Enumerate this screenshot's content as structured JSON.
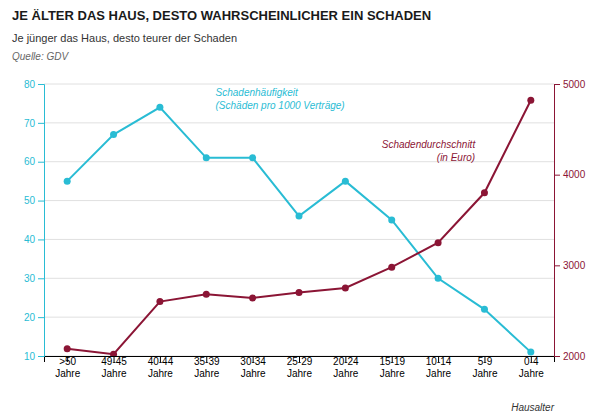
{
  "chart_data": {
    "type": "line",
    "title": "JE ÄLTER DAS HAUS, DESTO WAHRSCHEINLICHER EIN SCHADEN",
    "subtitle": "Je jünger das Haus, desto teurer der Schaden",
    "annotations": [
      "Quelle: GDV"
    ],
    "x_label": "Hausalter",
    "categories": [
      ">50\nJahre",
      "49-45\nJahre",
      "40-44\nJahre",
      "35-39\nJahre",
      "30-34\nJahre",
      "25-29\nJahre",
      "20-24\nJahre",
      "15-19\nJahre",
      "10-14\nJahre",
      "5-9\nJahre",
      "0-4\nJahre"
    ],
    "series": [
      {
        "name": "Schadenhäufigkeit\n(Schäden pro 1000 Verträge)",
        "color": "#29bcd4",
        "marker": "circle",
        "values": [
          55,
          67,
          74,
          61,
          61,
          46,
          55,
          45,
          30,
          22,
          11
        ]
      },
      {
        "name": "Schadendurchschnitt\n(in Euro)",
        "color": "#8b1535",
        "marker": "circle",
        "axis": "y2",
        "values": [
          2080,
          2020,
          2600,
          2680,
          2640,
          2700,
          2750,
          2980,
          3250,
          3800,
          4820
        ]
      }
    ],
    "ylim": [
      10,
      80
    ],
    "yticks": [
      10,
      20,
      30,
      40,
      50,
      60,
      70,
      80
    ],
    "y2lim": [
      2000,
      5000
    ],
    "y2ticks": [
      2000,
      3000,
      4000,
      5000
    ],
    "grid": true
  }
}
